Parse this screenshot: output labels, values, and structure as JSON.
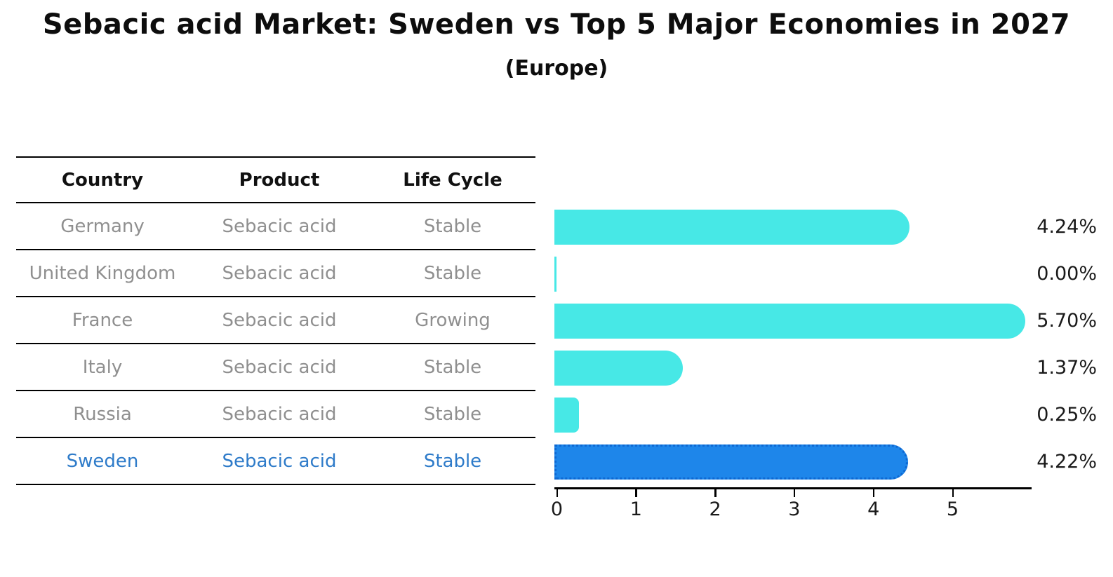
{
  "title": "Sebacic acid Market: Sweden vs Top 5 Major Economies in 2027",
  "subtitle": "(Europe)",
  "table": {
    "headers": [
      "Country",
      "Product",
      "Life Cycle"
    ],
    "rows": [
      {
        "country": "Germany",
        "product": "Sebacic acid",
        "life_cycle": "Stable",
        "value": 4.24,
        "value_label": "4.24%",
        "highlight": false
      },
      {
        "country": "United Kingdom",
        "product": "Sebacic acid",
        "life_cycle": "Stable",
        "value": 0.0,
        "value_label": "0.00%",
        "highlight": false
      },
      {
        "country": "France",
        "product": "Sebacic acid",
        "life_cycle": "Growing",
        "value": 5.7,
        "value_label": "5.70%",
        "highlight": false
      },
      {
        "country": "Italy",
        "product": "Sebacic acid",
        "life_cycle": "Stable",
        "value": 1.37,
        "value_label": "1.37%",
        "highlight": false
      },
      {
        "country": "Russia",
        "product": "Sebacic acid",
        "life_cycle": "Stable",
        "value": 0.25,
        "value_label": "0.25%",
        "highlight": false
      },
      {
        "country": "Sweden",
        "product": "Sebacic acid",
        "life_cycle": "Stable",
        "value": 4.22,
        "value_label": "4.22%",
        "highlight": true
      }
    ]
  },
  "chart_data": {
    "type": "bar",
    "orientation": "horizontal",
    "title": "Sebacic acid Market: Sweden vs Top 5 Major Economies in 2027",
    "subtitle": "(Europe)",
    "categories": [
      "Germany",
      "United Kingdom",
      "France",
      "Italy",
      "Russia",
      "Sweden"
    ],
    "values": [
      4.24,
      0.0,
      5.7,
      1.37,
      0.25,
      4.22
    ],
    "value_labels": [
      "4.24%",
      "0.00%",
      "5.70%",
      "1.37%",
      "0.25%",
      "4.22%"
    ],
    "x_ticks": [
      "0",
      "1",
      "2",
      "3",
      "4",
      "5"
    ],
    "xlim": [
      0,
      6
    ],
    "grid": false,
    "highlight_category": "Sweden",
    "bar_color": "#47e8e6",
    "highlight_bar_color": "#1e86ea",
    "highlight_border_color": "#0e68d2",
    "highlight_text_color": "#2e7bc9",
    "muted_text_color": "#8f8f8f"
  }
}
